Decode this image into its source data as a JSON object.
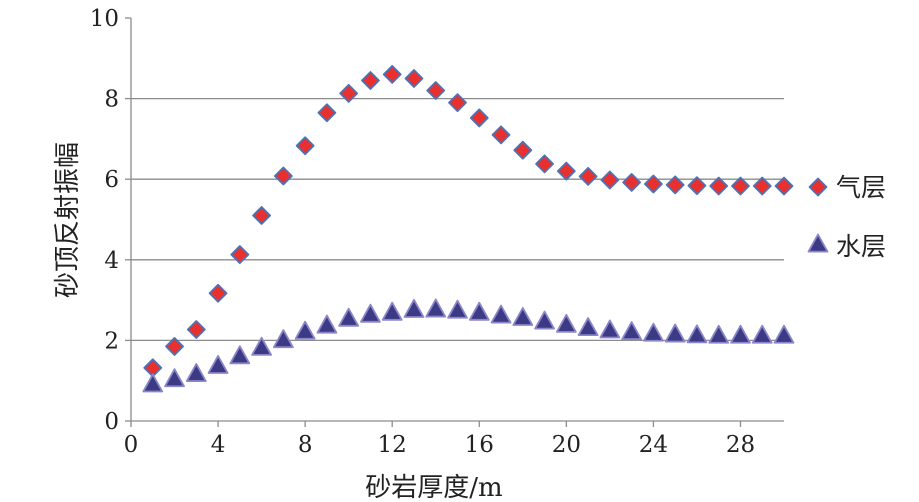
{
  "chart_data": {
    "type": "scatter",
    "xlabel": "砂岩厚度/m",
    "ylabel": "砂顶反射振幅",
    "xlim": [
      0,
      30
    ],
    "ylim": [
      0,
      10
    ],
    "x_ticks": [
      0,
      4,
      8,
      12,
      16,
      20,
      24,
      28
    ],
    "y_ticks": [
      0,
      2,
      4,
      6,
      8,
      10
    ],
    "grid": "horizontal",
    "legend_position": "right",
    "series": [
      {
        "name": "气层",
        "marker": "diamond",
        "color": "#e8312f",
        "edge_color": "#4a73b8",
        "x": [
          1,
          2,
          3,
          4,
          5,
          6,
          7,
          8,
          9,
          10,
          11,
          12,
          13,
          14,
          15,
          16,
          17,
          18,
          19,
          20,
          21,
          22,
          23,
          24,
          25,
          26,
          27,
          28,
          29,
          30
        ],
        "y": [
          1.32,
          1.85,
          2.27,
          3.17,
          4.13,
          5.1,
          6.08,
          6.83,
          7.65,
          8.13,
          8.45,
          8.6,
          8.5,
          8.2,
          7.9,
          7.52,
          7.1,
          6.72,
          6.38,
          6.2,
          6.07,
          5.98,
          5.92,
          5.88,
          5.86,
          5.84,
          5.83,
          5.83,
          5.83,
          5.83
        ]
      },
      {
        "name": "水层",
        "marker": "triangle",
        "color": "#3d3a85",
        "edge_color": "#8a86c9",
        "x": [
          1,
          2,
          3,
          4,
          5,
          6,
          7,
          8,
          9,
          10,
          11,
          12,
          13,
          14,
          15,
          16,
          17,
          18,
          19,
          20,
          21,
          22,
          23,
          24,
          25,
          26,
          27,
          28,
          29,
          30
        ],
        "y": [
          0.92,
          1.05,
          1.18,
          1.38,
          1.62,
          1.83,
          2.02,
          2.23,
          2.38,
          2.55,
          2.65,
          2.7,
          2.77,
          2.78,
          2.75,
          2.7,
          2.63,
          2.57,
          2.48,
          2.4,
          2.32,
          2.26,
          2.22,
          2.18,
          2.16,
          2.14,
          2.13,
          2.13,
          2.13,
          2.13
        ]
      }
    ]
  }
}
